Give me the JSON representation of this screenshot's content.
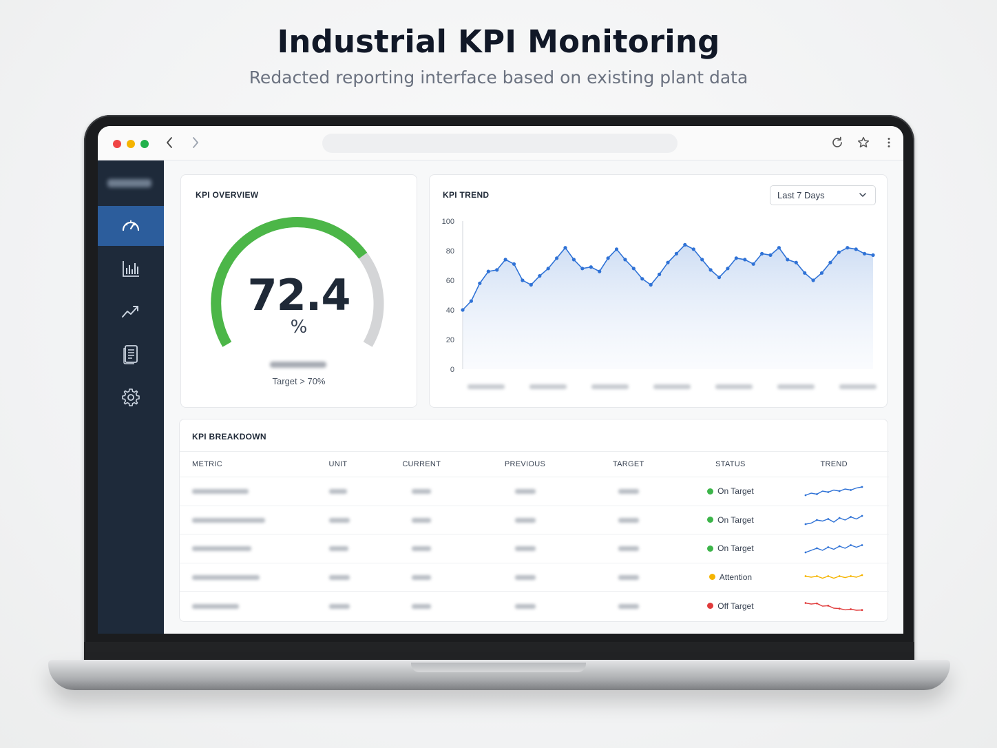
{
  "page": {
    "title": "Industrial KPI Monitoring",
    "subtitle": "Redacted reporting interface based on existing plant data"
  },
  "browser": {
    "back_icon": "chevron-left-icon",
    "forward_icon": "chevron-right-icon",
    "reload_icon": "reload-icon",
    "bookmark_icon": "star-icon",
    "menu_icon": "kebab-menu-icon"
  },
  "sidebar": {
    "items": [
      {
        "icon": "speedometer-icon",
        "active": true
      },
      {
        "icon": "bar-chart-icon",
        "active": false
      },
      {
        "icon": "trend-line-icon",
        "active": false
      },
      {
        "icon": "report-document-icon",
        "active": false
      },
      {
        "icon": "gear-icon",
        "active": false
      }
    ]
  },
  "overview": {
    "title": "KPI OVERVIEW",
    "value": "72.4",
    "value_numeric": 72.4,
    "unit": "%",
    "target_label": "Target > 70%",
    "colors": {
      "fill": "#4cb648",
      "track": "#d4d5d7"
    }
  },
  "trend": {
    "title": "KPI TREND",
    "range_label": "Last 7 Days",
    "color": "#2f72d6"
  },
  "chart_data": {
    "type": "area",
    "title": "KPI TREND",
    "xlabel": "",
    "ylabel": "",
    "ylim": [
      0,
      100
    ],
    "yticks": [
      0,
      20,
      40,
      60,
      80,
      100
    ],
    "grid": false,
    "series": [
      {
        "values": [
          40,
          46,
          58,
          66,
          67,
          74,
          71,
          60,
          57,
          63,
          68,
          75,
          82,
          74,
          68,
          69,
          66,
          75,
          81,
          74,
          68,
          61,
          57,
          64,
          72,
          78,
          84,
          81,
          74,
          67,
          62,
          68,
          75,
          74,
          71,
          78,
          77,
          82,
          74,
          72,
          65,
          60,
          65,
          72,
          79,
          82,
          81,
          78,
          77
        ]
      }
    ]
  },
  "breakdown": {
    "title": "KPI BREAKDOWN",
    "columns": [
      "METRIC",
      "UNIT",
      "CURRENT",
      "PREVIOUS",
      "TARGET",
      "STATUS",
      "TREND"
    ],
    "rows": [
      {
        "status": "On Target",
        "status_color": "#3db54a",
        "trend_color": "#2f72d6",
        "trend": [
          3,
          4,
          3.5,
          5,
          4.5,
          5.5,
          5,
          6,
          5.5,
          6.5,
          7
        ]
      },
      {
        "status": "On Target",
        "status_color": "#3db54a",
        "trend_color": "#2f72d6",
        "trend": [
          3,
          3.5,
          5,
          4.5,
          5.5,
          4,
          6,
          5,
          6.5,
          5.5,
          7
        ]
      },
      {
        "status": "On Target",
        "status_color": "#3db54a",
        "trend_color": "#2f72d6",
        "trend": [
          3,
          4,
          5,
          4,
          5.5,
          4.5,
          6,
          5,
          6.5,
          5.5,
          6.5
        ]
      },
      {
        "status": "Attention",
        "status_color": "#f5b400",
        "trend_color": "#f5b400",
        "trend": [
          5.5,
          5,
          5.5,
          4.5,
          5.5,
          4.5,
          5.5,
          4.8,
          5.5,
          5,
          6
        ]
      },
      {
        "status": "Off Target",
        "status_color": "#e03b3b",
        "trend_color": "#e03b3b",
        "trend": [
          6.5,
          6,
          6.3,
          5,
          5.2,
          4,
          3.8,
          3.2,
          3.5,
          3,
          3.1
        ]
      }
    ]
  }
}
